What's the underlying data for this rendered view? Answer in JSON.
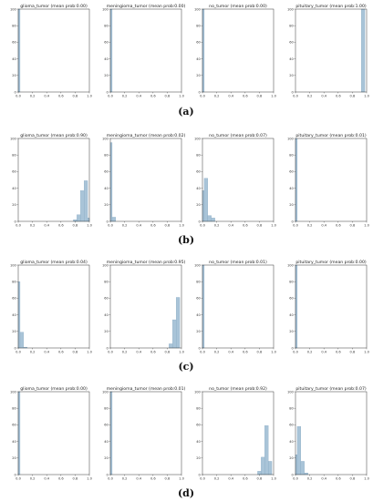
{
  "chart_data": [
    {
      "type": "bar",
      "group": "(a)",
      "x_ticks": [
        "0.0",
        "0.2",
        "0.4",
        "0.6",
        "0.8",
        "1.0"
      ],
      "y_ticks": [
        "0",
        "20",
        "40",
        "60",
        "80",
        "100"
      ],
      "xlim": [
        0,
        1
      ],
      "ylim": [
        0,
        100
      ],
      "panels": [
        {
          "title": "glioma_tumor (mean prob:0.00)",
          "bins": [
            {
              "x": 0.0,
              "value": 100
            }
          ]
        },
        {
          "title": "meningioma_tumor (mean prob:0.00)",
          "bins": [
            {
              "x": 0.0,
              "value": 100
            }
          ]
        },
        {
          "title": "no_tumor (mean prob:0.00)",
          "bins": [
            {
              "x": 0.0,
              "value": 100
            }
          ]
        },
        {
          "title": "pituitary_tumor (mean prob:1.00)",
          "bins": [
            {
              "x": 0.95,
              "value": 100
            }
          ]
        }
      ]
    },
    {
      "type": "bar",
      "group": "(b)",
      "x_ticks": [
        "0.0",
        "0.2",
        "0.4",
        "0.6",
        "0.8",
        "1.0"
      ],
      "y_ticks": [
        "0",
        "20",
        "40",
        "60",
        "80",
        "100"
      ],
      "xlim": [
        0,
        1
      ],
      "ylim": [
        0,
        100
      ],
      "panels": [
        {
          "title": "glioma_tumor (mean prob:0.90)",
          "bins": [
            {
              "x": 0.8,
              "value": 2
            },
            {
              "x": 0.85,
              "value": 8
            },
            {
              "x": 0.9,
              "value": 37
            },
            {
              "x": 0.95,
              "value": 49
            },
            {
              "x": 1.0,
              "value": 4
            }
          ]
        },
        {
          "title": "meningioma_tumor (mean prob:0.02)",
          "bins": [
            {
              "x": 0.0,
              "value": 95
            },
            {
              "x": 0.05,
              "value": 5
            }
          ]
        },
        {
          "title": "no_tumor (mean prob:0.07)",
          "bins": [
            {
              "x": 0.0,
              "value": 37
            },
            {
              "x": 0.05,
              "value": 52
            },
            {
              "x": 0.1,
              "value": 7
            },
            {
              "x": 0.15,
              "value": 4
            }
          ]
        },
        {
          "title": "pituitary_tumor (mean prob:0.01)",
          "bins": [
            {
              "x": 0.0,
              "value": 100
            }
          ]
        }
      ]
    },
    {
      "type": "bar",
      "group": "(c)",
      "x_ticks": [
        "0.0",
        "0.2",
        "0.4",
        "0.6",
        "0.8",
        "1.0"
      ],
      "y_ticks": [
        "0",
        "20",
        "40",
        "60",
        "80",
        "100"
      ],
      "xlim": [
        0,
        1
      ],
      "ylim": [
        0,
        100
      ],
      "panels": [
        {
          "title": "glioma_tumor (mean prob:0.04)",
          "bins": [
            {
              "x": 0.0,
              "value": 80
            },
            {
              "x": 0.05,
              "value": 19
            },
            {
              "x": 0.1,
              "value": 1
            }
          ]
        },
        {
          "title": "meningioma_tumor (mean prob:0.95)",
          "bins": [
            {
              "x": 0.85,
              "value": 5
            },
            {
              "x": 0.9,
              "value": 34
            },
            {
              "x": 0.95,
              "value": 61
            }
          ]
        },
        {
          "title": "no_tumor (mean prob:0.01)",
          "bins": [
            {
              "x": 0.0,
              "value": 100
            }
          ]
        },
        {
          "title": "pituitary_tumor (mean prob:0.00)",
          "bins": [
            {
              "x": 0.0,
              "value": 100
            }
          ]
        }
      ]
    },
    {
      "type": "bar",
      "group": "(d)",
      "x_ticks": [
        "0.0",
        "0.2",
        "0.4",
        "0.6",
        "0.8",
        "1.0"
      ],
      "y_ticks": [
        "0",
        "20",
        "40",
        "60",
        "80",
        "100"
      ],
      "xlim": [
        0,
        1
      ],
      "ylim": [
        0,
        100
      ],
      "panels": [
        {
          "title": "glioma_tumor (mean prob:0.00)",
          "bins": [
            {
              "x": 0.0,
              "value": 100
            }
          ]
        },
        {
          "title": "meningioma_tumor (mean prob:0.01)",
          "bins": [
            {
              "x": 0.0,
              "value": 100
            }
          ]
        },
        {
          "title": "no_tumor (mean prob:0.92)",
          "bins": [
            {
              "x": 0.8,
              "value": 4
            },
            {
              "x": 0.85,
              "value": 21
            },
            {
              "x": 0.9,
              "value": 59
            },
            {
              "x": 0.95,
              "value": 16
            }
          ]
        },
        {
          "title": "pituitary_tumor (mean prob:0.07)",
          "bins": [
            {
              "x": 0.0,
              "value": 24
            },
            {
              "x": 0.05,
              "value": 58
            },
            {
              "x": 0.1,
              "value": 16
            },
            {
              "x": 0.15,
              "value": 2
            }
          ]
        }
      ]
    }
  ],
  "colors": {
    "bar_fill": "#a9c4d8",
    "bar_edge": "#7fa3be"
  }
}
